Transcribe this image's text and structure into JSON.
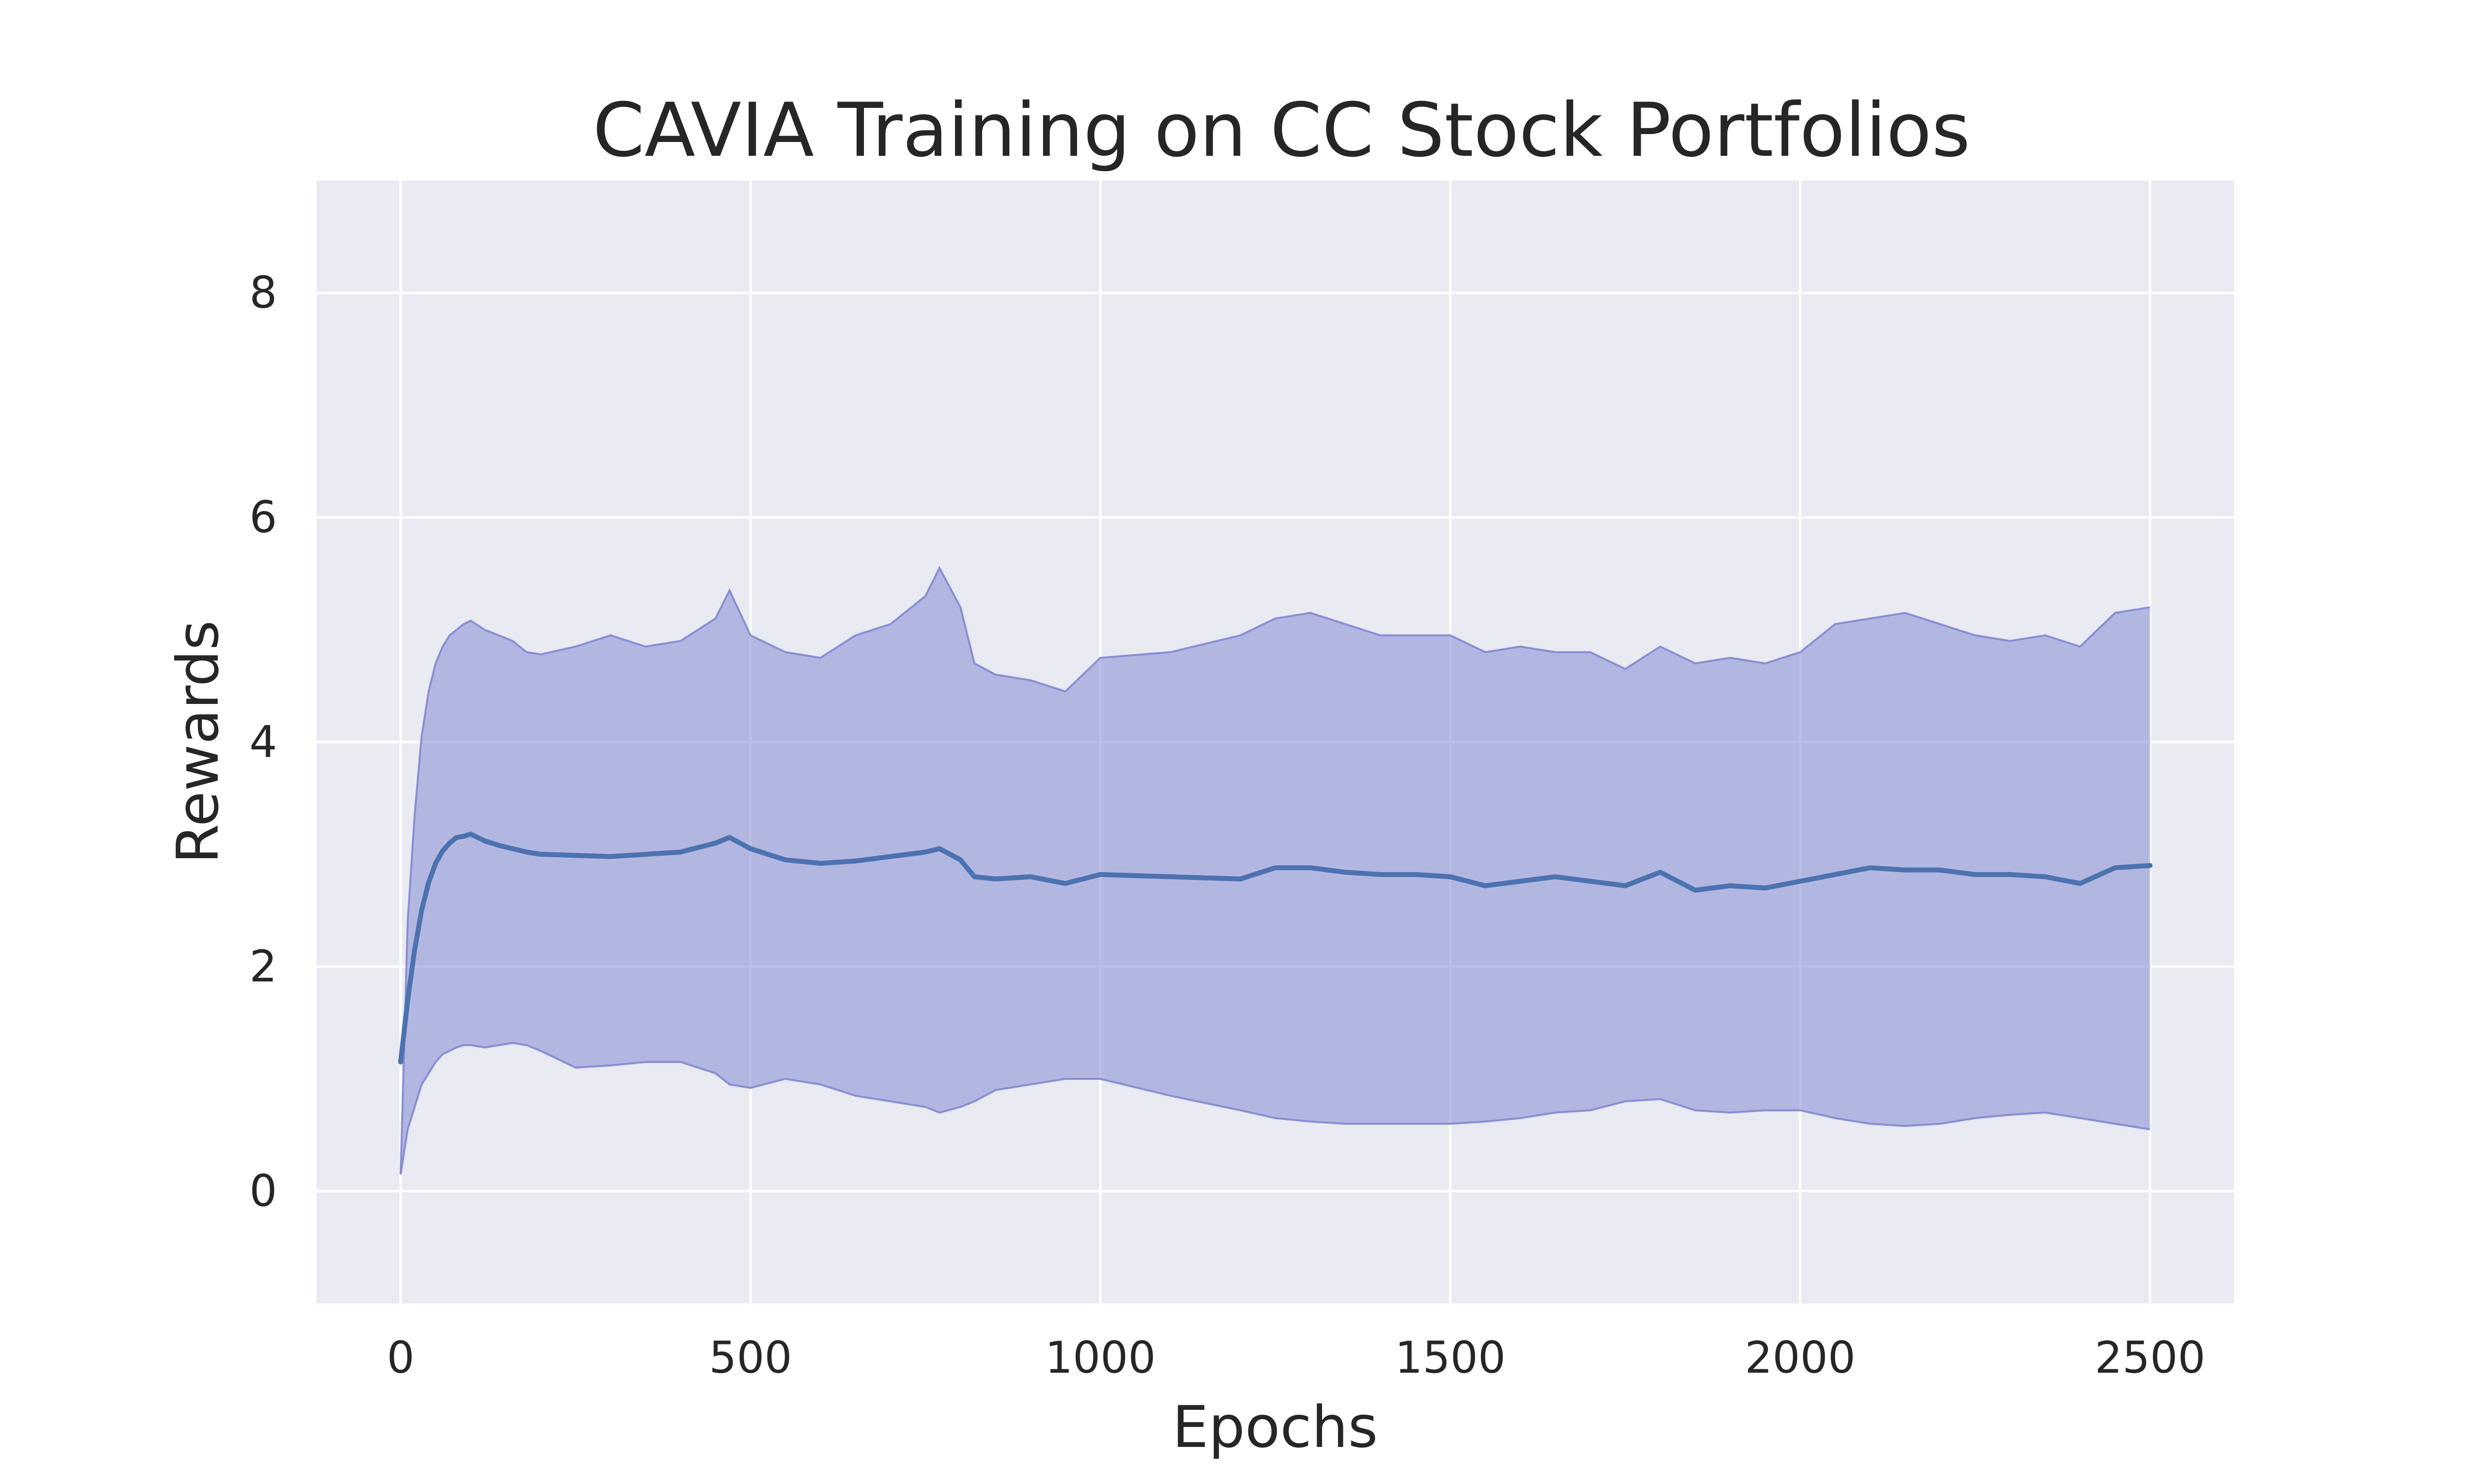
{
  "chart_data": {
    "type": "line",
    "title": "CAVIA Training on CC Stock Portfolios",
    "xlabel": "Epochs",
    "ylabel": "Rewards",
    "xlim": [
      -120,
      2620
    ],
    "ylim": [
      -1,
      9
    ],
    "x_ticks": [
      0,
      500,
      1000,
      1500,
      2000,
      2500
    ],
    "y_ticks": [
      0,
      2,
      4,
      6,
      8
    ],
    "grid": true,
    "legend": "none",
    "colors": {
      "background": "#eaeaf2",
      "grid": "#ffffff",
      "mean_line": "#4c72b0",
      "band_fill": "#8f98d8",
      "band_edge": "#7f88d0"
    },
    "series": [
      {
        "x": [
          0,
          10,
          20,
          30,
          40,
          50,
          60,
          70,
          80,
          90,
          100,
          120,
          140,
          160,
          180,
          200,
          250,
          300,
          350,
          400,
          450,
          470,
          500,
          550,
          600,
          650,
          700,
          750,
          770,
          800,
          820,
          850,
          900,
          950,
          1000,
          1100,
          1200,
          1250,
          1300,
          1350,
          1400,
          1450,
          1500,
          1550,
          1600,
          1650,
          1700,
          1750,
          1800,
          1850,
          1900,
          1950,
          2000,
          2050,
          2100,
          2150,
          2200,
          2250,
          2300,
          2350,
          2400,
          2450,
          2500
        ],
        "mean": [
          1.15,
          1.7,
          2.15,
          2.5,
          2.75,
          2.92,
          3.03,
          3.1,
          3.15,
          3.16,
          3.18,
          3.12,
          3.08,
          3.05,
          3.02,
          3.0,
          2.99,
          2.98,
          3.0,
          3.02,
          3.1,
          3.15,
          3.05,
          2.95,
          2.92,
          2.94,
          2.98,
          3.02,
          3.05,
          2.95,
          2.8,
          2.78,
          2.8,
          2.74,
          2.82,
          2.8,
          2.78,
          2.88,
          2.88,
          2.84,
          2.82,
          2.82,
          2.8,
          2.72,
          2.76,
          2.8,
          2.76,
          2.72,
          2.84,
          2.68,
          2.72,
          2.7,
          2.76,
          2.82,
          2.88,
          2.86,
          2.86,
          2.82,
          2.82,
          2.8,
          2.74,
          2.88,
          2.9
        ],
        "upper": [
          0.15,
          2.4,
          3.35,
          4.05,
          4.45,
          4.7,
          4.85,
          4.95,
          5.0,
          5.05,
          5.08,
          5.0,
          4.95,
          4.9,
          4.8,
          4.78,
          4.85,
          4.95,
          4.85,
          4.9,
          5.1,
          5.35,
          4.95,
          4.8,
          4.75,
          4.95,
          5.05,
          5.3,
          5.55,
          5.2,
          4.7,
          4.6,
          4.55,
          4.45,
          4.75,
          4.8,
          4.95,
          5.1,
          5.15,
          5.05,
          4.95,
          4.95,
          4.95,
          4.8,
          4.85,
          4.8,
          4.8,
          4.65,
          4.85,
          4.7,
          4.75,
          4.7,
          4.8,
          5.05,
          5.1,
          5.15,
          5.05,
          4.95,
          4.9,
          4.95,
          4.85,
          5.15,
          5.2
        ],
        "lower": [
          0.15,
          0.55,
          0.75,
          0.95,
          1.05,
          1.15,
          1.22,
          1.25,
          1.28,
          1.3,
          1.3,
          1.28,
          1.3,
          1.32,
          1.3,
          1.25,
          1.1,
          1.12,
          1.15,
          1.15,
          1.05,
          0.95,
          0.92,
          1.0,
          0.95,
          0.85,
          0.8,
          0.75,
          0.7,
          0.75,
          0.8,
          0.9,
          0.95,
          1.0,
          1.0,
          0.85,
          0.72,
          0.65,
          0.62,
          0.6,
          0.6,
          0.6,
          0.6,
          0.62,
          0.65,
          0.7,
          0.72,
          0.8,
          0.82,
          0.72,
          0.7,
          0.72,
          0.72,
          0.65,
          0.6,
          0.58,
          0.6,
          0.65,
          0.68,
          0.7,
          0.65,
          0.6,
          0.55
        ]
      }
    ]
  }
}
